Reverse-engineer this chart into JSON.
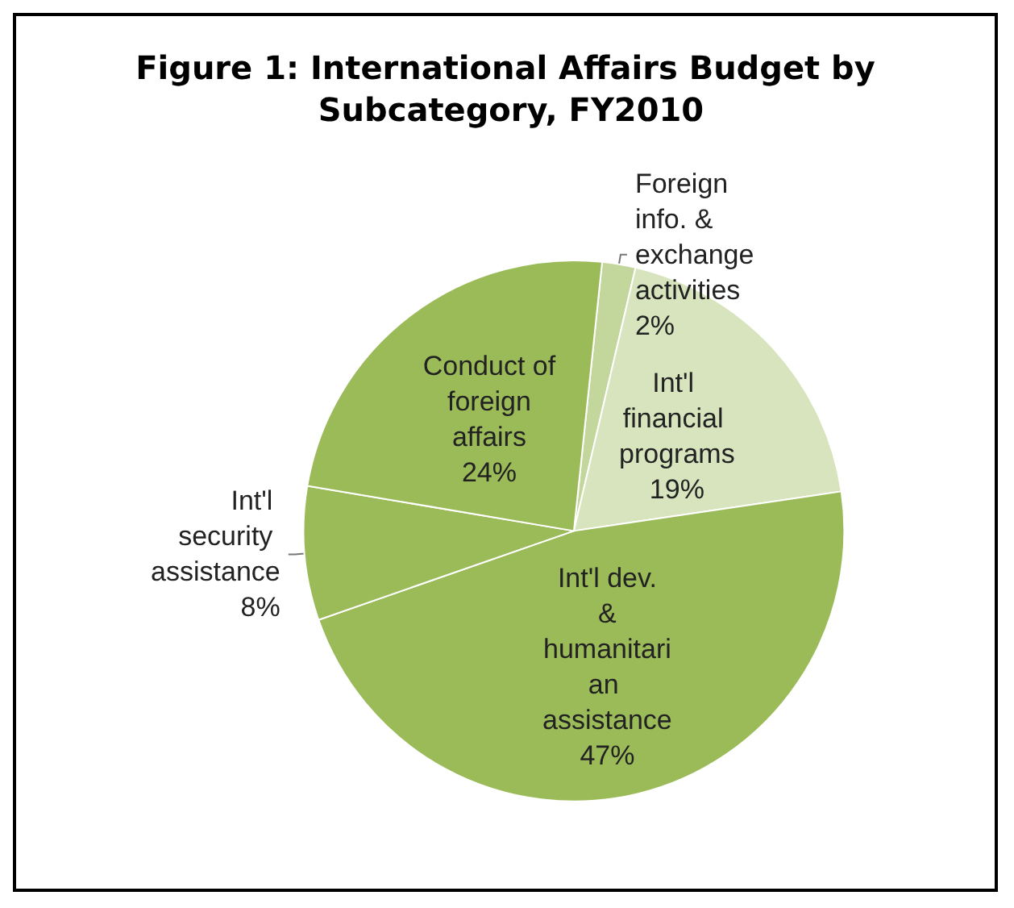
{
  "chart_data": {
    "type": "pie",
    "title": "Figure 1: International Affairs Budget by Subcategory, FY2010",
    "categories": [
      "Foreign info. & exchange activities",
      "Int'l financial programs",
      "Int'l dev. & humanitarian assistance",
      "Int'l security assistance",
      "Conduct of foreign affairs"
    ],
    "values": [
      2,
      19,
      47,
      8,
      24
    ],
    "colors": [
      "#c3d69b",
      "#d7e4bd",
      "#9bbb59",
      "#9bbb59",
      "#9bbb59"
    ],
    "value_labels": [
      "2%",
      "19%",
      "47%",
      "8%",
      "24%"
    ],
    "legend": false
  }
}
